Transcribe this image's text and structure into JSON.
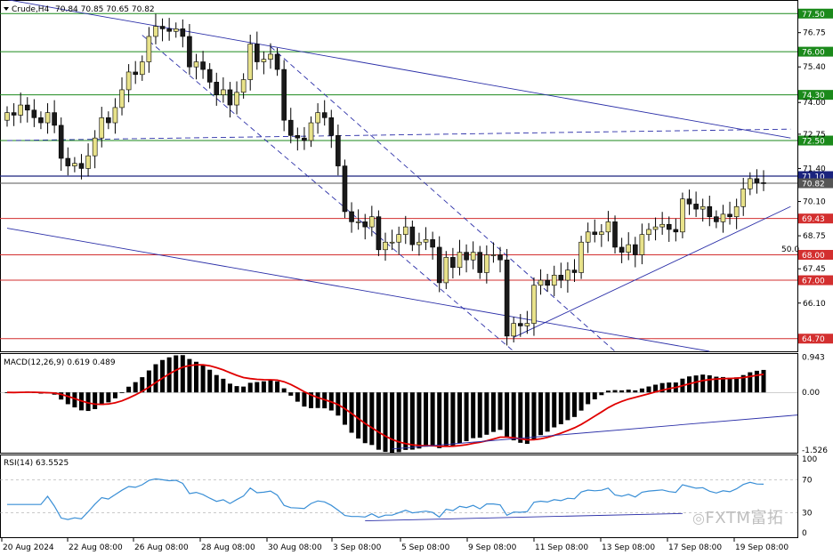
{
  "header": {
    "symbol": "Crude,H4",
    "ohlc": "70.84 70.85 70.65 70.82"
  },
  "watermark": "FXTM富拓",
  "colors": {
    "bull": "#e8e28a",
    "bear": "#1a1a1a",
    "support": "#d32f2f",
    "resistance": "#1b8a1b",
    "trend": "#2b2fa8",
    "macd_signal": "#e00000",
    "rsi": "#3a8fd6",
    "current": "#1a237e"
  },
  "chart_data": [
    {
      "type": "candlestick",
      "name": "price",
      "ylim": [
        64.2,
        78.0
      ],
      "price_ticks": [
        "77.50",
        "76.75",
        "76.00",
        "75.40",
        "74.30",
        "74.00",
        "72.75",
        "72.50",
        "71.40",
        "71.10",
        "70.82",
        "70.10",
        "69.43",
        "68.75",
        "68.00",
        "67.45",
        "67.00",
        "66.10",
        "64.70"
      ],
      "levels": [
        {
          "value": 77.5,
          "label": "77.50",
          "kind": "resistance"
        },
        {
          "value": 76.0,
          "label": "76.00",
          "kind": "resistance"
        },
        {
          "value": 74.3,
          "label": "74.30",
          "kind": "resistance"
        },
        {
          "value": 72.5,
          "label": "72.50",
          "kind": "resistance"
        },
        {
          "value": 71.1,
          "label": "71.10",
          "kind": "current"
        },
        {
          "value": 70.82,
          "label": "70.82",
          "kind": "bid"
        },
        {
          "value": 69.43,
          "label": "69.43",
          "kind": "support"
        },
        {
          "value": 68.0,
          "label": "68.00",
          "kind": "support"
        },
        {
          "value": 67.0,
          "label": "67.00",
          "kind": "support"
        },
        {
          "value": 64.7,
          "label": "64.70",
          "kind": "support"
        }
      ],
      "annotation": "50.0",
      "x_labels": [
        "20 Aug 2024",
        "22 Aug 08:00",
        "26 Aug 08:00",
        "28 Aug 08:00",
        "30 Aug 08:00",
        "3 Sep 08:00",
        "5 Sep 08:00",
        "9 Sep 08:00",
        "11 Sep 08:00",
        "13 Sep 08:00",
        "17 Sep 08:00",
        "19 Sep 08:00"
      ],
      "close": [
        73.6,
        73.5,
        73.9,
        73.7,
        73.4,
        73.2,
        73.6,
        73.1,
        71.8,
        71.5,
        71.6,
        71.4,
        71.9,
        72.6,
        73.4,
        73.2,
        73.8,
        74.5,
        75.2,
        75.1,
        75.6,
        76.6,
        77.0,
        76.9,
        76.8,
        76.9,
        76.6,
        75.4,
        75.6,
        75.3,
        74.8,
        74.3,
        74.5,
        73.9,
        74.4,
        74.9,
        76.3,
        75.6,
        75.7,
        75.9,
        75.3,
        73.3,
        72.7,
        72.6,
        72.5,
        73.2,
        73.6,
        73.4,
        72.7,
        71.5,
        69.7,
        69.3,
        69.3,
        69.1,
        69.5,
        68.2,
        68.5,
        68.5,
        68.8,
        69.1,
        68.4,
        68.5,
        68.6,
        68.3,
        66.9,
        67.9,
        67.5,
        68.1,
        67.8,
        68.1,
        67.3,
        68.0,
        68.0,
        67.8,
        64.8,
        65.3,
        65.2,
        65.3,
        66.8,
        67.0,
        66.8,
        67.2,
        67.0,
        67.4,
        67.3,
        68.5,
        68.9,
        68.8,
        68.9,
        69.3,
        68.3,
        68.1,
        68.4,
        68.0,
        68.8,
        69.0,
        69.1,
        69.2,
        69.0,
        68.9,
        70.2,
        70.0,
        69.8,
        69.9,
        69.5,
        69.3,
        69.6,
        69.5,
        69.9,
        70.6,
        71.0,
        70.84,
        70.82
      ],
      "open": [
        73.3,
        73.6,
        73.5,
        73.9,
        73.7,
        73.4,
        73.2,
        73.6,
        73.1,
        71.8,
        71.5,
        71.6,
        71.4,
        71.9,
        72.6,
        73.4,
        73.2,
        73.8,
        74.5,
        75.2,
        75.1,
        75.6,
        76.6,
        77.0,
        76.9,
        76.8,
        76.9,
        76.6,
        75.4,
        75.6,
        75.3,
        74.8,
        74.3,
        74.5,
        73.9,
        74.4,
        74.9,
        76.3,
        75.6,
        75.7,
        75.9,
        75.3,
        73.3,
        72.7,
        72.6,
        72.5,
        73.2,
        73.6,
        73.4,
        72.7,
        71.5,
        69.7,
        69.3,
        69.3,
        69.1,
        69.5,
        68.2,
        68.5,
        68.5,
        68.8,
        69.1,
        68.4,
        68.5,
        68.6,
        68.3,
        66.9,
        67.9,
        67.5,
        68.1,
        67.8,
        68.1,
        67.3,
        68.0,
        68.0,
        67.8,
        64.8,
        65.3,
        65.2,
        65.3,
        66.8,
        67.0,
        66.8,
        67.2,
        67.0,
        67.4,
        67.3,
        68.5,
        68.9,
        68.8,
        68.9,
        69.3,
        68.3,
        68.1,
        68.4,
        68.0,
        68.8,
        69.0,
        69.1,
        69.2,
        69.0,
        68.9,
        70.2,
        70.0,
        69.8,
        69.9,
        69.5,
        69.3,
        69.6,
        69.5,
        69.9,
        70.6,
        71.0,
        70.84
      ],
      "bodyclose_hint": "close",
      "trendlines": [
        {
          "from": [
            0,
            78.05
          ],
          "to": [
            116,
            72.6
          ],
          "style": "solid"
        },
        {
          "from": [
            0,
            69.05
          ],
          "to": [
            104,
            64.2
          ],
          "style": "solid"
        },
        {
          "from": [
            75,
            64.75
          ],
          "to": [
            116,
            69.9
          ],
          "style": "solid"
        },
        {
          "from": [
            0,
            72.5
          ],
          "to": [
            116,
            72.95
          ],
          "style": "dashed"
        },
        {
          "from": [
            20,
            76.65
          ],
          "to": [
            75,
            64.2
          ],
          "style": "dashed"
        },
        {
          "from": [
            39,
            76.2
          ],
          "to": [
            90,
            64.2
          ],
          "style": "dashed"
        }
      ]
    },
    {
      "type": "bar",
      "name": "MACD",
      "title": "MACD(12,26,9) 0.619 0.489",
      "ylim": [
        -1.6,
        1.02
      ],
      "ticks": [
        "0.943",
        "0.00",
        "-1.526"
      ],
      "trendline": {
        "from": [
          57,
          -1.5
        ],
        "to": [
          116,
          -0.6
        ]
      }
    },
    {
      "type": "line",
      "name": "RSI",
      "title": "RSI(14) 63.5525",
      "ylim": [
        0,
        100
      ],
      "ticks": [
        "100",
        "70",
        "30",
        "0"
      ],
      "trendline": {
        "from": [
          53,
          20
        ],
        "to": [
          100,
          29
        ]
      }
    }
  ]
}
